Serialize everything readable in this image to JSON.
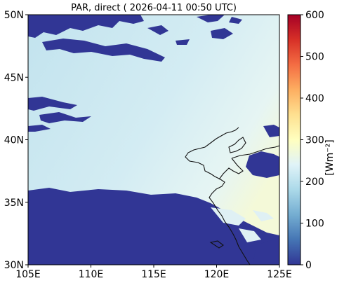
{
  "title": "PAR, direct ( 2026-04-11 00:50 UTC)",
  "map": {
    "lon_ticks": [
      "105E",
      "110E",
      "115E",
      "120E",
      "125E"
    ],
    "lat_ticks": [
      "50N",
      "45N",
      "40N",
      "35N",
      "30N"
    ],
    "lon_range": [
      105,
      125
    ],
    "lat_range": [
      30,
      50
    ],
    "no_data_color": "#313695"
  },
  "colorbar": {
    "label": "[Wm⁻²]",
    "ticks": [
      "0",
      "100",
      "200",
      "300",
      "400",
      "500",
      "600"
    ],
    "range": [
      0,
      600
    ],
    "colors": [
      "#313695",
      "#4575b4",
      "#74add1",
      "#abd9e9",
      "#e0f3f8",
      "#ffffbf",
      "#fee090",
      "#fdae61",
      "#f46d43",
      "#d73027",
      "#a50026"
    ]
  }
}
